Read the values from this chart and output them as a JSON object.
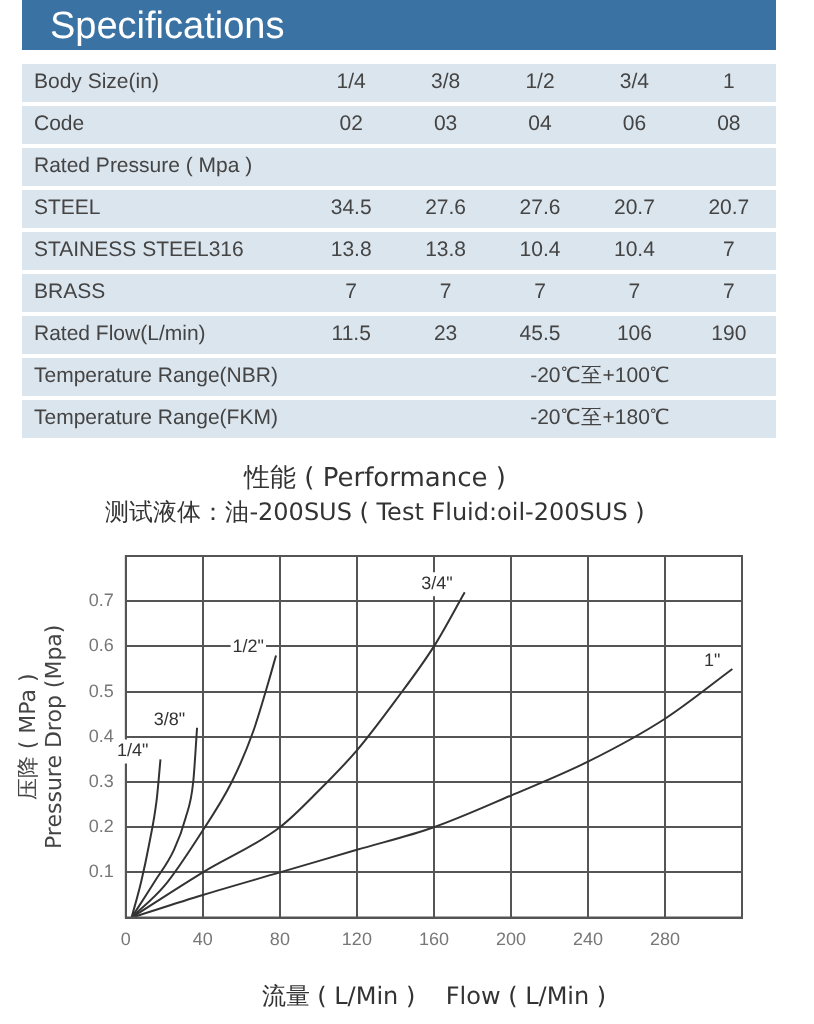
{
  "chart_data": [
    {
      "type": "other",
      "title": "Specifications",
      "xlabel": "Body Size(in)",
      "categories": [
        "1/4",
        "3/8",
        "1/2",
        "3/4",
        "1"
      ],
      "y_categories": [
        "Code",
        "Rated Pressure ( Mpa )",
        "STEEL",
        "STAINESS STEEL316",
        "BRASS",
        "Rated Flow(L/min)",
        "Temperature Range(NBR)",
        "Temperature Range(FKM)"
      ],
      "cell_labels": [
        [
          "02",
          "03",
          "04",
          "06",
          "08"
        ],
        null,
        [
          "34.5",
          "27.6",
          "27.6",
          "20.7",
          "20.7"
        ],
        [
          "13.8",
          "13.8",
          "10.4",
          "10.4",
          "7"
        ],
        [
          "7",
          "7",
          "7",
          "7",
          "7"
        ],
        [
          "11.5",
          "23",
          "45.5",
          "106",
          "190"
        ],
        [
          "-20℃至+100℃"
        ],
        [
          "-20℃至+180℃"
        ]
      ]
    },
    {
      "type": "line",
      "title": "性能 ( Performance )",
      "subtitle": "测试液体：油-200SUS ( Test Fluid:oil-200SUS )",
      "xlabel": "流量 ( L/Min )    Flow ( L/Min )",
      "ylabel": "压降 ( MPa )\nPressure Drop (Mpa)",
      "xlim": [
        0,
        320
      ],
      "xticks": [
        0,
        40,
        80,
        120,
        160,
        200,
        240,
        280
      ],
      "ylim": [
        0,
        0.8
      ],
      "yticks": [
        0.1,
        0.2,
        0.3,
        0.4,
        0.5,
        0.6,
        0.7
      ],
      "grid": true,
      "legend": false,
      "marker": "none",
      "line_style": "solid",
      "series": [
        {
          "name": "1/4\"",
          "color": "#333333",
          "x": [
            3,
            8,
            12,
            16,
            18
          ],
          "values": [
            0,
            0.08,
            0.16,
            0.26,
            0.35
          ]
        },
        {
          "name": "3/8\"",
          "color": "#333333",
          "x": [
            3,
            15,
            25,
            31,
            35,
            37
          ],
          "values": [
            0,
            0.08,
            0.15,
            0.22,
            0.3,
            0.42
          ]
        },
        {
          "name": "1/2\"",
          "color": "#333333",
          "x": [
            3,
            20,
            38,
            55,
            66,
            74,
            78
          ],
          "values": [
            0,
            0.07,
            0.18,
            0.3,
            0.41,
            0.52,
            0.58
          ]
        },
        {
          "name": "3/4\"",
          "color": "#333333",
          "x": [
            3,
            40,
            80,
            100,
            120,
            140,
            160,
            176
          ],
          "values": [
            0,
            0.1,
            0.2,
            0.28,
            0.37,
            0.48,
            0.6,
            0.72
          ]
        },
        {
          "name": "1\"",
          "color": "#333333",
          "x": [
            3,
            40,
            80,
            120,
            160,
            200,
            240,
            280,
            315
          ],
          "values": [
            0,
            0.05,
            0.1,
            0.15,
            0.2,
            0.27,
            0.345,
            0.44,
            0.55
          ]
        }
      ]
    }
  ]
}
